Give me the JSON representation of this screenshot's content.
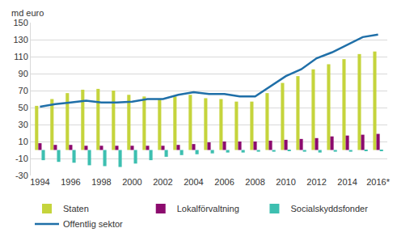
{
  "chart_data": {
    "type": "bar",
    "y_label": "md euro",
    "categories": [
      "1994",
      null,
      "1996",
      null,
      "1998",
      null,
      "2000",
      null,
      "2002",
      null,
      "2004",
      null,
      "2006",
      null,
      "2008",
      null,
      "2010",
      null,
      "2012",
      null,
      "2014",
      null,
      "2016*"
    ],
    "series": [
      {
        "name": "Staten",
        "type": "bar",
        "color": "#c5d43c",
        "values": [
          52,
          60,
          67,
          71,
          72,
          70,
          65,
          63,
          60,
          63,
          65,
          61,
          60,
          57,
          57,
          67,
          79,
          87,
          95,
          101,
          107,
          113,
          116
        ]
      },
      {
        "name": "Lokalförvaltning",
        "type": "bar",
        "color": "#8c0b6e",
        "values": [
          8,
          6,
          6,
          5,
          5,
          5,
          5,
          5,
          5,
          6,
          7,
          9,
          10,
          10,
          10,
          11,
          12,
          13,
          14,
          16,
          17,
          18,
          19
        ]
      },
      {
        "name": "Socialskyddsfonder",
        "type": "bar",
        "color": "#3dbfb0",
        "values": [
          -12,
          -14,
          -15,
          -18,
          -19,
          -20,
          -16,
          -12,
          -8,
          -6,
          -5,
          -4,
          -3,
          -3,
          -2,
          -2,
          -1,
          -2,
          -3,
          -2,
          -2,
          -1,
          -1
        ]
      },
      {
        "name": "Offentlig sektor",
        "type": "line",
        "color": "#1f6fa8",
        "values": [
          51,
          54,
          56,
          58,
          56,
          56,
          57,
          60,
          60,
          65,
          68,
          66,
          66,
          63,
          63,
          75,
          87,
          95,
          108,
          115,
          124,
          133,
          136
        ]
      }
    ],
    "ylim": [
      -30,
      150
    ],
    "yticks": [
      -30,
      -10,
      10,
      30,
      50,
      70,
      90,
      110,
      130,
      150
    ],
    "grid": true,
    "legend": "bottom"
  }
}
